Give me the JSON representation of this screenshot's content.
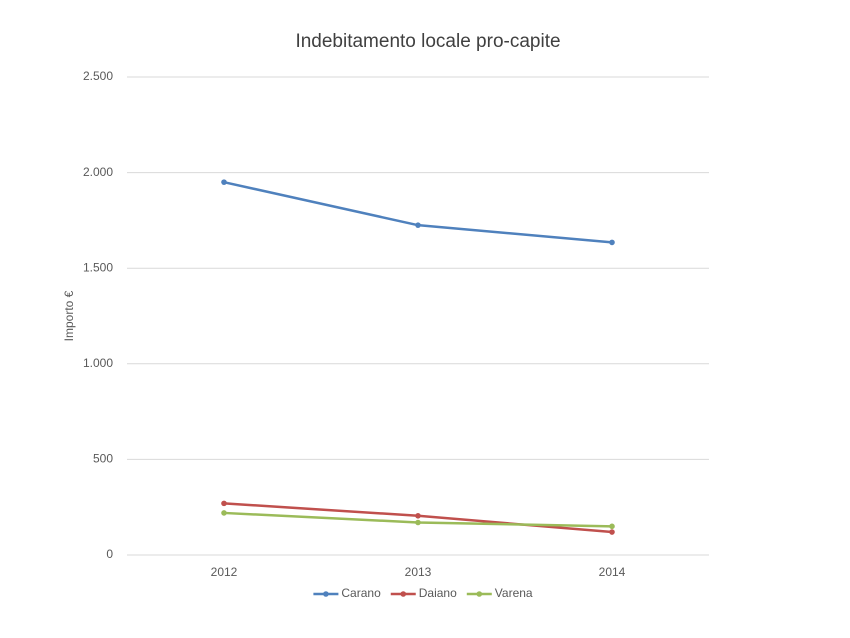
{
  "chart_data": {
    "type": "line",
    "title": "Indebitamento locale pro-capite",
    "y_label": "Importo €",
    "categories": [
      "2012",
      "2013",
      "2014"
    ],
    "series": [
      {
        "name": "Carano",
        "color": "#4f81bd",
        "values": [
          1950,
          1725,
          1635
        ]
      },
      {
        "name": "Daiano",
        "color": "#c0504d",
        "values": [
          270,
          205,
          120
        ]
      },
      {
        "name": "Varena",
        "color": "#9bbb59",
        "values": [
          220,
          170,
          150
        ]
      }
    ],
    "ylim": [
      0,
      2500
    ],
    "yticks": [
      0,
      500,
      {
        "value": 1000,
        "label": "1.000"
      },
      {
        "value": 1500,
        "label": "1.500"
      },
      {
        "value": 2000,
        "label": "2.000"
      },
      {
        "value": 2500,
        "label": "2.500"
      }
    ],
    "grid": true,
    "legend": "bottom"
  }
}
